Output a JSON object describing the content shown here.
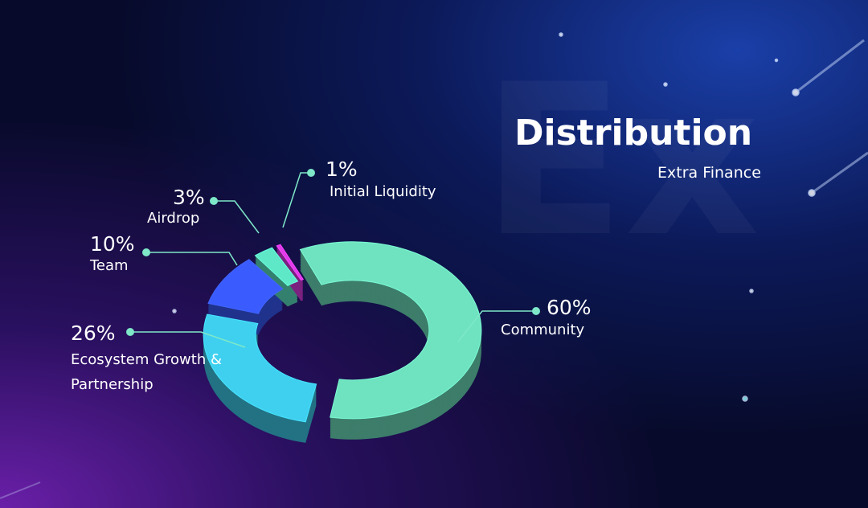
{
  "chart_data": {
    "type": "pie",
    "title": "Distribution",
    "subtitle": "Extra Finance",
    "categories": [
      "Community",
      "Ecosystem Growth & Partnership",
      "Team",
      "Airdrop",
      "Initial Liquidity"
    ],
    "values": [
      60,
      26,
      10,
      3,
      1
    ],
    "value_labels": [
      "60%",
      "26%",
      "10%",
      "3%",
      "1%"
    ],
    "colors": [
      "#6fe3c0",
      "#3fd0f0",
      "#3a5cff",
      "#5ee8c8",
      "#e03ce8"
    ]
  }
}
